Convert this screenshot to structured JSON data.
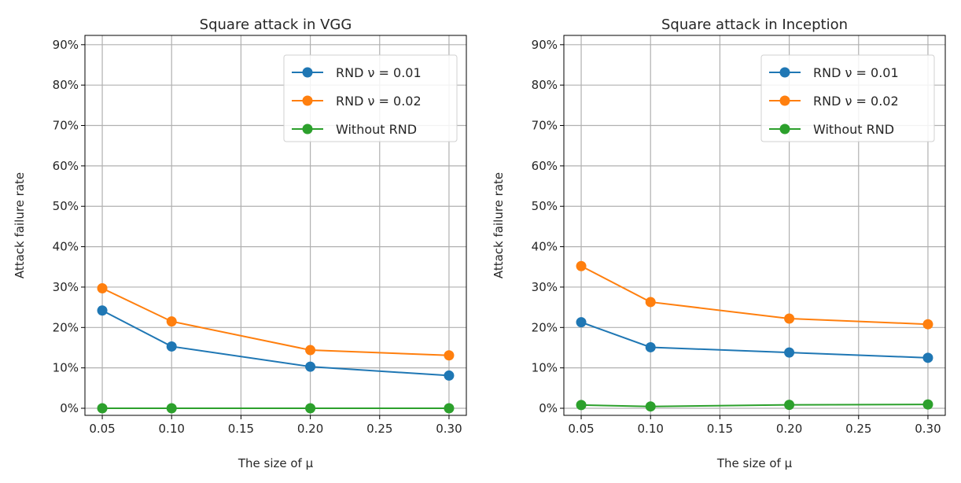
{
  "chart_data": [
    {
      "type": "line",
      "title": "Square attack in VGG",
      "xlabel": "The size of μ",
      "ylabel": "Attack failure rate",
      "x": [
        0.05,
        0.1,
        0.2,
        0.3
      ],
      "xticks": [
        "0.05",
        "0.10",
        "0.15",
        "0.20",
        "0.25",
        "0.30"
      ],
      "yticks": [
        "0%",
        "10%",
        "20%",
        "30%",
        "40%",
        "50%",
        "60%",
        "70%",
        "80%",
        "90%"
      ],
      "xlim": [
        0.0375,
        0.3125
      ],
      "ylim": [
        -1.75,
        92.3
      ],
      "grid": true,
      "legend": "top-right",
      "series": [
        {
          "name": "RND ν = 0.01",
          "color": "#1f77b4",
          "values": [
            24.2,
            15.3,
            10.3,
            8.1
          ]
        },
        {
          "name": "RND ν = 0.02",
          "color": "#ff7f0e",
          "values": [
            29.7,
            21.5,
            14.4,
            13.1
          ]
        },
        {
          "name": "Without RND",
          "color": "#2ca02c",
          "values": [
            0,
            0,
            0,
            0
          ]
        }
      ]
    },
    {
      "type": "line",
      "title": "Square attack in Inception",
      "xlabel": "The size of μ",
      "ylabel": "Attack failure rate",
      "x": [
        0.05,
        0.1,
        0.2,
        0.3
      ],
      "xticks": [
        "0.05",
        "0.10",
        "0.15",
        "0.20",
        "0.25",
        "0.30"
      ],
      "yticks": [
        "0%",
        "10%",
        "20%",
        "30%",
        "40%",
        "50%",
        "60%",
        "70%",
        "80%",
        "90%"
      ],
      "xlim": [
        0.0375,
        0.3125
      ],
      "ylim": [
        -1.75,
        92.3
      ],
      "grid": true,
      "legend": "top-right",
      "series": [
        {
          "name": "RND ν = 0.01",
          "color": "#1f77b4",
          "values": [
            21.3,
            15.1,
            13.8,
            12.5
          ]
        },
        {
          "name": "RND ν = 0.02",
          "color": "#ff7f0e",
          "values": [
            35.2,
            26.3,
            22.2,
            20.8
          ]
        },
        {
          "name": "Without RND",
          "color": "#2ca02c",
          "values": [
            0.8,
            0.45,
            0.85,
            0.95
          ]
        }
      ]
    }
  ]
}
